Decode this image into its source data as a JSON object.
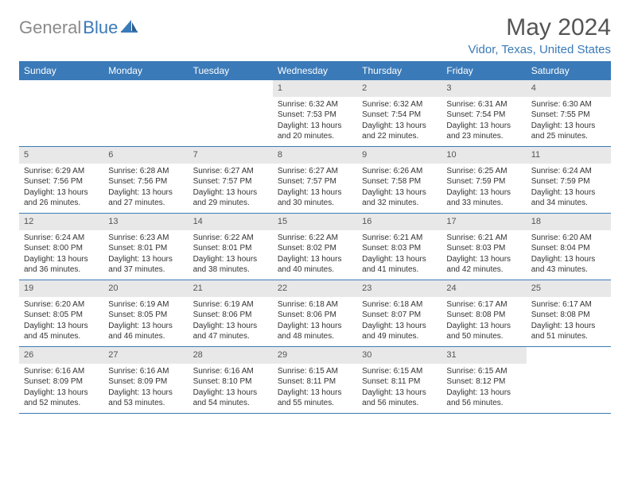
{
  "logo": {
    "text_gray": "General",
    "text_blue": "Blue"
  },
  "title": "May 2024",
  "location": "Vidor, Texas, United States",
  "colors": {
    "header_bg": "#3a7ab8",
    "header_text": "#ffffff",
    "daynum_bg": "#e8e8e8",
    "text": "#333333",
    "logo_gray": "#8a8a8a",
    "logo_blue": "#3a7ab8"
  },
  "weekdays": [
    "Sunday",
    "Monday",
    "Tuesday",
    "Wednesday",
    "Thursday",
    "Friday",
    "Saturday"
  ],
  "weeks": [
    [
      null,
      null,
      null,
      {
        "n": "1",
        "sr": "6:32 AM",
        "ss": "7:53 PM",
        "dl": "13 hours and 20 minutes."
      },
      {
        "n": "2",
        "sr": "6:32 AM",
        "ss": "7:54 PM",
        "dl": "13 hours and 22 minutes."
      },
      {
        "n": "3",
        "sr": "6:31 AM",
        "ss": "7:54 PM",
        "dl": "13 hours and 23 minutes."
      },
      {
        "n": "4",
        "sr": "6:30 AM",
        "ss": "7:55 PM",
        "dl": "13 hours and 25 minutes."
      }
    ],
    [
      {
        "n": "5",
        "sr": "6:29 AM",
        "ss": "7:56 PM",
        "dl": "13 hours and 26 minutes."
      },
      {
        "n": "6",
        "sr": "6:28 AM",
        "ss": "7:56 PM",
        "dl": "13 hours and 27 minutes."
      },
      {
        "n": "7",
        "sr": "6:27 AM",
        "ss": "7:57 PM",
        "dl": "13 hours and 29 minutes."
      },
      {
        "n": "8",
        "sr": "6:27 AM",
        "ss": "7:57 PM",
        "dl": "13 hours and 30 minutes."
      },
      {
        "n": "9",
        "sr": "6:26 AM",
        "ss": "7:58 PM",
        "dl": "13 hours and 32 minutes."
      },
      {
        "n": "10",
        "sr": "6:25 AM",
        "ss": "7:59 PM",
        "dl": "13 hours and 33 minutes."
      },
      {
        "n": "11",
        "sr": "6:24 AM",
        "ss": "7:59 PM",
        "dl": "13 hours and 34 minutes."
      }
    ],
    [
      {
        "n": "12",
        "sr": "6:24 AM",
        "ss": "8:00 PM",
        "dl": "13 hours and 36 minutes."
      },
      {
        "n": "13",
        "sr": "6:23 AM",
        "ss": "8:01 PM",
        "dl": "13 hours and 37 minutes."
      },
      {
        "n": "14",
        "sr": "6:22 AM",
        "ss": "8:01 PM",
        "dl": "13 hours and 38 minutes."
      },
      {
        "n": "15",
        "sr": "6:22 AM",
        "ss": "8:02 PM",
        "dl": "13 hours and 40 minutes."
      },
      {
        "n": "16",
        "sr": "6:21 AM",
        "ss": "8:03 PM",
        "dl": "13 hours and 41 minutes."
      },
      {
        "n": "17",
        "sr": "6:21 AM",
        "ss": "8:03 PM",
        "dl": "13 hours and 42 minutes."
      },
      {
        "n": "18",
        "sr": "6:20 AM",
        "ss": "8:04 PM",
        "dl": "13 hours and 43 minutes."
      }
    ],
    [
      {
        "n": "19",
        "sr": "6:20 AM",
        "ss": "8:05 PM",
        "dl": "13 hours and 45 minutes."
      },
      {
        "n": "20",
        "sr": "6:19 AM",
        "ss": "8:05 PM",
        "dl": "13 hours and 46 minutes."
      },
      {
        "n": "21",
        "sr": "6:19 AM",
        "ss": "8:06 PM",
        "dl": "13 hours and 47 minutes."
      },
      {
        "n": "22",
        "sr": "6:18 AM",
        "ss": "8:06 PM",
        "dl": "13 hours and 48 minutes."
      },
      {
        "n": "23",
        "sr": "6:18 AM",
        "ss": "8:07 PM",
        "dl": "13 hours and 49 minutes."
      },
      {
        "n": "24",
        "sr": "6:17 AM",
        "ss": "8:08 PM",
        "dl": "13 hours and 50 minutes."
      },
      {
        "n": "25",
        "sr": "6:17 AM",
        "ss": "8:08 PM",
        "dl": "13 hours and 51 minutes."
      }
    ],
    [
      {
        "n": "26",
        "sr": "6:16 AM",
        "ss": "8:09 PM",
        "dl": "13 hours and 52 minutes."
      },
      {
        "n": "27",
        "sr": "6:16 AM",
        "ss": "8:09 PM",
        "dl": "13 hours and 53 minutes."
      },
      {
        "n": "28",
        "sr": "6:16 AM",
        "ss": "8:10 PM",
        "dl": "13 hours and 54 minutes."
      },
      {
        "n": "29",
        "sr": "6:15 AM",
        "ss": "8:11 PM",
        "dl": "13 hours and 55 minutes."
      },
      {
        "n": "30",
        "sr": "6:15 AM",
        "ss": "8:11 PM",
        "dl": "13 hours and 56 minutes."
      },
      {
        "n": "31",
        "sr": "6:15 AM",
        "ss": "8:12 PM",
        "dl": "13 hours and 56 minutes."
      },
      null
    ]
  ],
  "labels": {
    "sunrise": "Sunrise:",
    "sunset": "Sunset:",
    "daylight": "Daylight:"
  }
}
